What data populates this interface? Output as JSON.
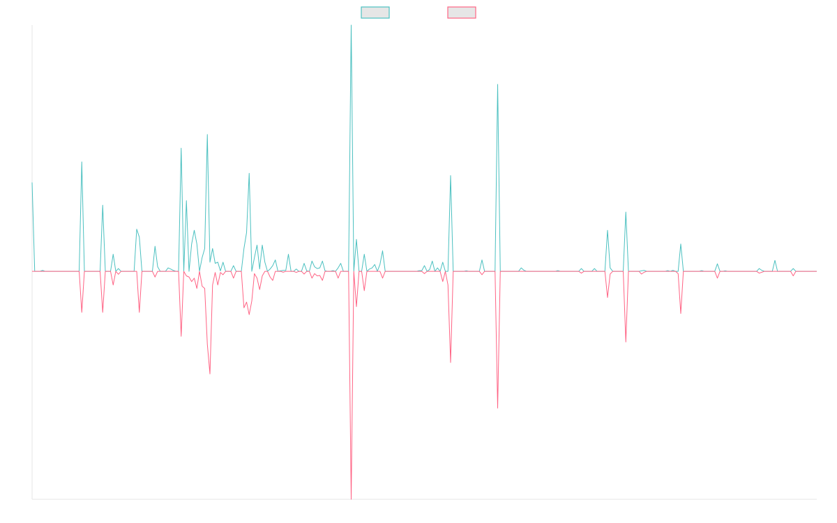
{
  "chart_data": {
    "type": "line",
    "title": "",
    "xlabel": "",
    "ylabel": "",
    "ylim": [
      -1.0,
      1.08
    ],
    "x_count": 301,
    "grid": false,
    "legend_position": "top-center",
    "colors": {
      "series_a": "#4bc0c0",
      "series_b": "#ff6384",
      "legend_fill": "#e6e6e6",
      "axis": "#e5e5e5"
    },
    "series": [
      {
        "name": "",
        "key": "series_a",
        "peaks": [
          [
            0,
            0.39
          ],
          [
            4,
            0.004
          ],
          [
            19,
            0.48
          ],
          [
            24,
            0.0
          ],
          [
            27,
            0.29
          ],
          [
            31,
            0.075
          ],
          [
            33,
            0.012
          ],
          [
            38,
            0.0
          ],
          [
            40,
            0.185
          ],
          [
            41,
            0.15
          ],
          [
            43,
            0.0
          ],
          [
            47,
            0.11
          ],
          [
            48,
            0.02
          ],
          [
            52,
            0.015
          ],
          [
            53,
            0.01
          ],
          [
            54,
            0.004
          ],
          [
            57,
            0.54
          ],
          [
            59,
            0.31
          ],
          [
            61,
            0.12
          ],
          [
            62,
            0.18
          ],
          [
            63,
            0.12
          ],
          [
            65,
            0.06
          ],
          [
            66,
            0.1
          ],
          [
            67,
            0.6
          ],
          [
            68,
            0.04
          ],
          [
            69,
            0.1
          ],
          [
            70,
            0.035
          ],
          [
            71,
            0.04
          ],
          [
            72,
            0.002
          ],
          [
            73,
            0.04
          ],
          [
            77,
            0.025
          ],
          [
            81,
            0.1
          ],
          [
            82,
            0.17
          ],
          [
            83,
            0.43
          ],
          [
            85,
            0.06
          ],
          [
            86,
            0.115
          ],
          [
            87,
            0.01
          ],
          [
            88,
            0.115
          ],
          [
            89,
            0.04
          ],
          [
            91,
            0.01
          ],
          [
            92,
            0.025
          ],
          [
            93,
            0.05
          ],
          [
            95,
            0.002
          ],
          [
            96,
            0.004
          ],
          [
            97,
            0.004
          ],
          [
            98,
            0.075
          ],
          [
            101,
            0.01
          ],
          [
            104,
            0.035
          ],
          [
            105,
            0.002
          ],
          [
            107,
            0.045
          ],
          [
            108,
            0.02
          ],
          [
            109,
            0.012
          ],
          [
            110,
            0.015
          ],
          [
            111,
            0.045
          ],
          [
            112,
            0.002
          ],
          [
            115,
            0.003
          ],
          [
            117,
            0.015
          ],
          [
            118,
            0.035
          ],
          [
            122,
            1.08
          ],
          [
            124,
            0.14
          ],
          [
            127,
            0.075
          ],
          [
            129,
            0.01
          ],
          [
            130,
            0.015
          ],
          [
            131,
            0.03
          ],
          [
            132,
            0.0
          ],
          [
            133,
            0.03
          ],
          [
            134,
            0.09
          ],
          [
            148,
            0.003
          ],
          [
            149,
            0.003
          ],
          [
            150,
            0.025
          ],
          [
            151,
            0.0
          ],
          [
            152,
            0.008
          ],
          [
            153,
            0.045
          ],
          [
            155,
            0.015
          ],
          [
            156,
            0.0
          ],
          [
            157,
            0.04
          ],
          [
            159,
            0.0
          ],
          [
            160,
            0.42
          ],
          [
            166,
            0.002
          ],
          [
            172,
            0.05
          ],
          [
            173,
            0.0
          ],
          [
            177,
            0.0
          ],
          [
            178,
            0.82
          ],
          [
            187,
            0.015
          ],
          [
            188,
            0.005
          ],
          [
            201,
            0.003
          ],
          [
            210,
            0.012
          ],
          [
            215,
            0.012
          ],
          [
            220,
            0.18
          ],
          [
            221,
            0.015
          ],
          [
            227,
            0.26
          ],
          [
            233,
            0.002
          ],
          [
            234,
            0.004
          ],
          [
            243,
            0.003
          ],
          [
            245,
            0.004
          ],
          [
            248,
            0.12
          ],
          [
            249,
            0.0
          ],
          [
            256,
            0.003
          ],
          [
            262,
            0.033
          ],
          [
            263,
            0.0
          ],
          [
            265,
            0.002
          ],
          [
            278,
            0.012
          ],
          [
            279,
            0.004
          ],
          [
            284,
            0.048
          ],
          [
            291,
            0.012
          ],
          [
            300,
            0.0
          ]
        ]
      },
      {
        "name": "",
        "key": "series_b",
        "peaks": [
          [
            19,
            -0.18
          ],
          [
            27,
            -0.18
          ],
          [
            31,
            -0.06
          ],
          [
            33,
            -0.013
          ],
          [
            41,
            -0.18
          ],
          [
            47,
            -0.025
          ],
          [
            57,
            -0.285
          ],
          [
            59,
            -0.02
          ],
          [
            60,
            -0.025
          ],
          [
            61,
            -0.045
          ],
          [
            62,
            -0.03
          ],
          [
            63,
            -0.075
          ],
          [
            65,
            -0.065
          ],
          [
            66,
            -0.075
          ],
          [
            67,
            -0.32
          ],
          [
            68,
            -0.45
          ],
          [
            69,
            -0.06
          ],
          [
            70,
            -0.005
          ],
          [
            71,
            -0.06
          ],
          [
            72,
            -0.005
          ],
          [
            73,
            -0.015
          ],
          [
            77,
            -0.03
          ],
          [
            81,
            -0.16
          ],
          [
            82,
            -0.135
          ],
          [
            83,
            -0.19
          ],
          [
            84,
            -0.13
          ],
          [
            85,
            -0.01
          ],
          [
            86,
            -0.03
          ],
          [
            87,
            -0.08
          ],
          [
            88,
            -0.02
          ],
          [
            91,
            -0.025
          ],
          [
            92,
            -0.04
          ],
          [
            96,
            -0.004
          ],
          [
            101,
            -0.005
          ],
          [
            104,
            -0.012
          ],
          [
            107,
            -0.03
          ],
          [
            108,
            -0.01
          ],
          [
            109,
            -0.02
          ],
          [
            110,
            -0.018
          ],
          [
            111,
            -0.04
          ],
          [
            117,
            -0.03
          ],
          [
            122,
            -1.0
          ],
          [
            124,
            -0.155
          ],
          [
            127,
            -0.085
          ],
          [
            132,
            -0.0
          ],
          [
            134,
            -0.03
          ],
          [
            150,
            -0.01
          ],
          [
            157,
            -0.045
          ],
          [
            159,
            -0.06
          ],
          [
            160,
            -0.4
          ],
          [
            172,
            -0.015
          ],
          [
            178,
            -0.6
          ],
          [
            210,
            -0.008
          ],
          [
            220,
            -0.115
          ],
          [
            221,
            -0.012
          ],
          [
            227,
            -0.31
          ],
          [
            233,
            -0.012
          ],
          [
            234,
            -0.004
          ],
          [
            247,
            -0.01
          ],
          [
            248,
            -0.185
          ],
          [
            262,
            -0.03
          ],
          [
            278,
            -0.008
          ],
          [
            279,
            -0.004
          ],
          [
            291,
            -0.02
          ]
        ]
      }
    ]
  }
}
